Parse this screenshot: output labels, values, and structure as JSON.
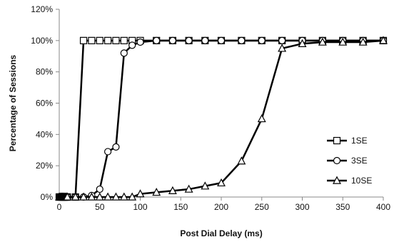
{
  "chart_data": {
    "type": "line",
    "title": "",
    "xlabel": "Post Dial Delay (ms)",
    "ylabel": "Percentage of Sessions",
    "xlim": [
      0,
      400
    ],
    "ylim": [
      0,
      120
    ],
    "x_ticks": [
      "0",
      "50",
      "100",
      "150",
      "200",
      "250",
      "300",
      "350",
      "400"
    ],
    "x_tick_values": [
      0,
      50,
      100,
      150,
      200,
      250,
      300,
      350,
      400
    ],
    "y_ticks": [
      "0%",
      "20%",
      "40%",
      "60%",
      "80%",
      "100%",
      "120%"
    ],
    "y_tick_values": [
      0,
      20,
      40,
      60,
      80,
      100,
      120
    ],
    "grid": false,
    "legend_position": "right",
    "series": [
      {
        "name": "1SE",
        "marker": "square",
        "color": "#000000",
        "x": [
          0,
          1,
          2,
          3,
          4,
          5,
          6,
          7,
          8,
          9,
          10,
          20,
          30,
          40,
          50,
          60,
          70,
          80,
          90,
          100,
          120,
          140,
          160,
          180,
          200,
          225,
          250,
          275,
          300,
          325,
          350,
          375,
          400
        ],
        "y": [
          0,
          0,
          0,
          0,
          0,
          0,
          0,
          0,
          0,
          0,
          0,
          0,
          100,
          100,
          100,
          100,
          100,
          100,
          100,
          100,
          100,
          100,
          100,
          100,
          100,
          100,
          100,
          100,
          100,
          100,
          100,
          100,
          100
        ]
      },
      {
        "name": "3SE",
        "marker": "circle",
        "color": "#000000",
        "x": [
          0,
          1,
          2,
          3,
          4,
          5,
          6,
          7,
          8,
          9,
          10,
          20,
          30,
          40,
          50,
          60,
          70,
          80,
          90,
          100,
          120,
          140,
          160,
          180,
          200,
          225,
          250,
          275,
          300,
          325,
          350,
          375,
          400
        ],
        "y": [
          0,
          0,
          0,
          0,
          0,
          0,
          0,
          0,
          0,
          0,
          0,
          0,
          0,
          1,
          5,
          29,
          32,
          92,
          97,
          99,
          100,
          100,
          100,
          100,
          100,
          100,
          100,
          100,
          100,
          100,
          100,
          100,
          100
        ]
      },
      {
        "name": "10SE",
        "marker": "triangle",
        "color": "#000000",
        "x": [
          0,
          1,
          2,
          3,
          4,
          5,
          6,
          7,
          8,
          9,
          10,
          20,
          30,
          40,
          50,
          60,
          70,
          80,
          90,
          100,
          120,
          140,
          160,
          180,
          200,
          225,
          250,
          275,
          300,
          325,
          350,
          375,
          400
        ],
        "y": [
          0,
          0,
          0,
          0,
          0,
          0,
          0,
          0,
          0,
          0,
          0,
          0,
          0,
          0,
          0,
          0,
          0,
          0,
          0,
          2,
          3,
          4,
          5,
          7,
          9,
          23,
          50,
          95,
          98,
          99,
          99,
          99,
          100
        ]
      }
    ]
  }
}
